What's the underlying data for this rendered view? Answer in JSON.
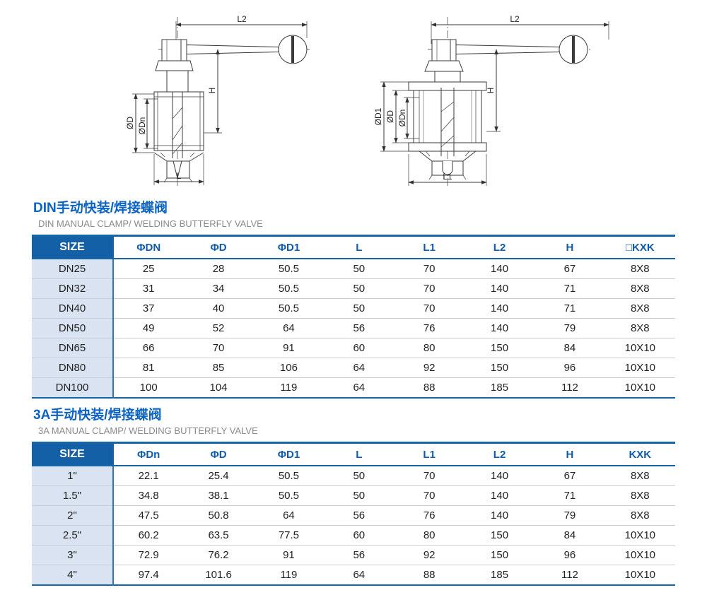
{
  "colors": {
    "accent_blue": "#1565a8",
    "title_blue": "#0d63c1",
    "header_cell_blue": "#1460a7",
    "size_column_bg": "#d9e3f1",
    "subtitle_gray": "#8a8a8a",
    "row_divider": "#c6cdd6",
    "line_color": "#3a3a3a"
  },
  "drawings": {
    "left": {
      "l2": "L2",
      "h": "H",
      "d": "ØD",
      "dn": "ØDn",
      "l": "L"
    },
    "right": {
      "l2": "L2",
      "h": "H",
      "d1": "ØD1",
      "d": "ØD",
      "dn": "ØDn",
      "l1": "L1"
    }
  },
  "sections": [
    {
      "title_zh": "DIN手动快装/焊接蝶阀",
      "title_en": "DIN MANUAL CLAMP/ WELDING BUTTERFLY VALVE",
      "headers": [
        "SIZE",
        "ΦDN",
        "ΦD",
        "ΦD1",
        "L",
        "L1",
        "L2",
        "H",
        "□KXK"
      ],
      "rows": [
        [
          "DN25",
          "25",
          "28",
          "50.5",
          "50",
          "70",
          "140",
          "67",
          "8X8"
        ],
        [
          "DN32",
          "31",
          "34",
          "50.5",
          "50",
          "70",
          "140",
          "71",
          "8X8"
        ],
        [
          "DN40",
          "37",
          "40",
          "50.5",
          "50",
          "70",
          "140",
          "71",
          "8X8"
        ],
        [
          "DN50",
          "49",
          "52",
          "64",
          "56",
          "76",
          "140",
          "79",
          "8X8"
        ],
        [
          "DN65",
          "66",
          "70",
          "91",
          "60",
          "80",
          "150",
          "84",
          "10X10"
        ],
        [
          "DN80",
          "81",
          "85",
          "106",
          "64",
          "92",
          "150",
          "96",
          "10X10"
        ],
        [
          "DN100",
          "100",
          "104",
          "119",
          "64",
          "88",
          "185",
          "112",
          "10X10"
        ]
      ]
    },
    {
      "title_zh": "3A手动快装/焊接蝶阀",
      "title_en": "3A MANUAL CLAMP/ WELDING BUTTERFLY VALVE",
      "headers": [
        "SIZE",
        "ΦDn",
        "ΦD",
        "ΦD1",
        "L",
        "L1",
        "L2",
        "H",
        "KXK"
      ],
      "rows": [
        [
          "1\"",
          "22.1",
          "25.4",
          "50.5",
          "50",
          "70",
          "140",
          "67",
          "8X8"
        ],
        [
          "1.5\"",
          "34.8",
          "38.1",
          "50.5",
          "50",
          "70",
          "140",
          "71",
          "8X8"
        ],
        [
          "2\"",
          "47.5",
          "50.8",
          "64",
          "56",
          "76",
          "140",
          "79",
          "8X8"
        ],
        [
          "2.5\"",
          "60.2",
          "63.5",
          "77.5",
          "60",
          "80",
          "150",
          "84",
          "10X10"
        ],
        [
          "3\"",
          "72.9",
          "76.2",
          "91",
          "56",
          "92",
          "150",
          "96",
          "10X10"
        ],
        [
          "4\"",
          "97.4",
          "101.6",
          "119",
          "64",
          "88",
          "185",
          "112",
          "10X10"
        ]
      ]
    }
  ]
}
